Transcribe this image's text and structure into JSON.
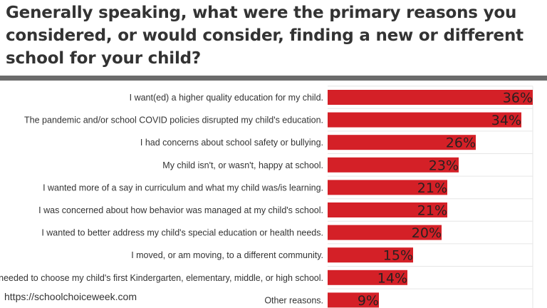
{
  "title": "Generally speaking, what were the primary reasons you considered, or would consider, finding a new or different school for your child?",
  "source": "https://schoolchoiceweek.com",
  "colors": {
    "bar": "#d42027",
    "grid": "#e6e6e6",
    "rule": "#6b6b6b"
  },
  "chart_data": {
    "type": "bar",
    "orientation": "horizontal",
    "title": "Generally speaking, what were the primary reasons you considered, or would consider, finding a new or different school for your child?",
    "categories": [
      "I want(ed) a higher quality education for my child.",
      "The pandemic and/or school COVID policies disrupted my child's education.",
      "I had concerns about school safety or bullying.",
      "My child isn't, or wasn't, happy at school.",
      "I wanted more of a say in curriculum and what my child was/is learning.",
      "I was concerned about how behavior was managed at my child's school.",
      "I wanted to better address my child's special education or health needs.",
      "I moved, or am moving, to a different community.",
      "I needed to choose my child's first Kindergarten, elementary, middle, or high school.",
      "Other reasons."
    ],
    "values": [
      36,
      34,
      26,
      23,
      21,
      21,
      20,
      15,
      14,
      9
    ],
    "value_labels": [
      "36%",
      "34%",
      "26%",
      "23%",
      "21%",
      "21%",
      "20%",
      "15%",
      "14%",
      "9%"
    ],
    "xlim": [
      0,
      36
    ],
    "grid": true
  }
}
